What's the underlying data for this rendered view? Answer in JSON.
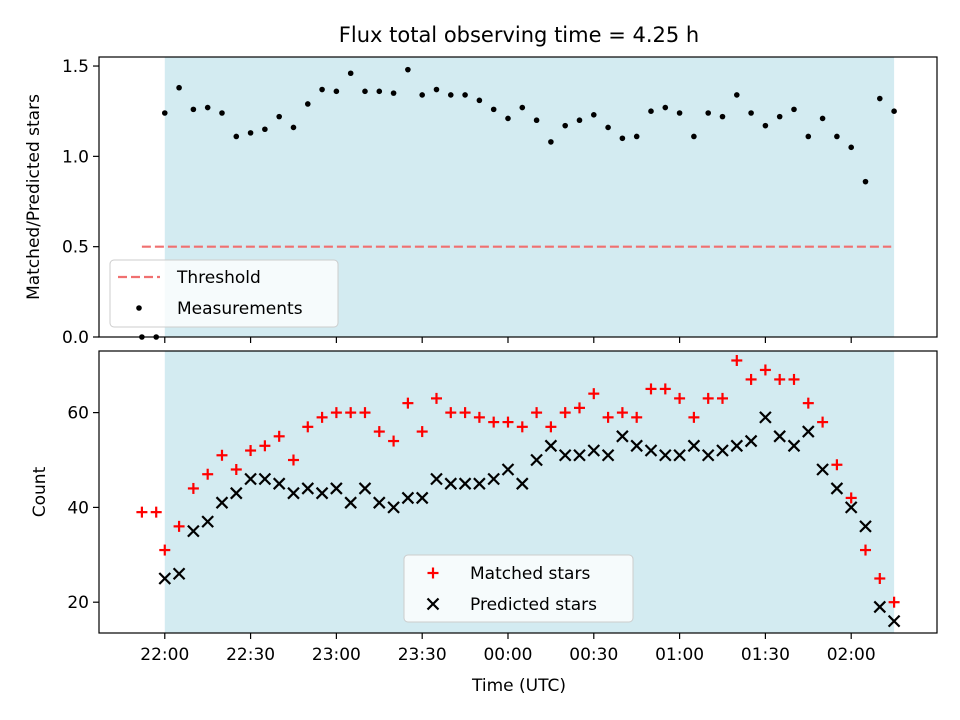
{
  "chart_data": [
    {
      "type": "scatter",
      "title": "Flux total observing time = 4.25 h",
      "ylabel": "Matched/Predicted stars",
      "xlim": [
        "21:37",
        "02:30"
      ],
      "ylim": [
        0,
        1.55
      ],
      "yticks": [
        "0.0",
        "0.5",
        "1.0",
        "1.5"
      ],
      "shaded_span": {
        "from": "22:00",
        "to": "02:15",
        "color": "#d3ebf1"
      },
      "threshold": {
        "name": "Threshold",
        "value": 0.5,
        "from": "21:52",
        "to": "02:14",
        "color": "#f07070"
      },
      "legend": {
        "location": "lower-left",
        "entries": [
          "Threshold",
          "Measurements"
        ]
      },
      "series": [
        {
          "name": "Measurements",
          "marker": "dot",
          "color": "#000000",
          "x": [
            "21:52",
            "21:57",
            "22:00",
            "22:05",
            "22:10",
            "22:15",
            "22:20",
            "22:25",
            "22:30",
            "22:35",
            "22:40",
            "22:45",
            "22:50",
            "22:55",
            "23:00",
            "23:05",
            "23:10",
            "23:15",
            "23:20",
            "23:25",
            "23:30",
            "23:35",
            "23:40",
            "23:45",
            "23:50",
            "23:55",
            "00:00",
            "00:05",
            "00:10",
            "00:15",
            "00:20",
            "00:25",
            "00:30",
            "00:35",
            "00:40",
            "00:45",
            "00:50",
            "00:55",
            "01:00",
            "01:05",
            "01:10",
            "01:15",
            "01:20",
            "01:25",
            "01:30",
            "01:35",
            "01:40",
            "01:45",
            "01:50",
            "01:55",
            "02:00",
            "02:05",
            "02:10",
            "02:15"
          ],
          "y": [
            0.0,
            0.0,
            1.24,
            1.38,
            1.26,
            1.27,
            1.24,
            1.11,
            1.13,
            1.15,
            1.22,
            1.16,
            1.29,
            1.37,
            1.36,
            1.46,
            1.36,
            1.36,
            1.35,
            1.48,
            1.34,
            1.37,
            1.34,
            1.34,
            1.31,
            1.26,
            1.21,
            1.27,
            1.2,
            1.08,
            1.17,
            1.2,
            1.23,
            1.16,
            1.1,
            1.11,
            1.25,
            1.27,
            1.24,
            1.11,
            1.24,
            1.22,
            1.34,
            1.24,
            1.17,
            1.22,
            1.26,
            1.11,
            1.21,
            1.11,
            1.05,
            0.86,
            1.32,
            1.25
          ]
        }
      ]
    },
    {
      "type": "scatter",
      "xlabel": "Time (UTC)",
      "ylabel": "Count",
      "xlim": [
        "21:37",
        "02:30"
      ],
      "ylim": [
        13.5,
        73
      ],
      "yticks": [
        "20",
        "40",
        "60"
      ],
      "xticks": [
        "22:00",
        "22:30",
        "23:00",
        "23:30",
        "00:00",
        "00:30",
        "01:00",
        "01:30",
        "02:00"
      ],
      "shaded_span": {
        "from": "22:00",
        "to": "02:15",
        "color": "#d3ebf1"
      },
      "legend": {
        "location": "lower-center",
        "entries": [
          "Matched stars",
          "Predicted stars"
        ]
      },
      "series": [
        {
          "name": "Matched stars",
          "marker": "plus",
          "color": "#ff0000",
          "x": [
            "21:52",
            "21:57",
            "22:00",
            "22:05",
            "22:10",
            "22:15",
            "22:20",
            "22:25",
            "22:30",
            "22:35",
            "22:40",
            "22:45",
            "22:50",
            "22:55",
            "23:00",
            "23:05",
            "23:10",
            "23:15",
            "23:20",
            "23:25",
            "23:30",
            "23:35",
            "23:40",
            "23:45",
            "23:50",
            "23:55",
            "00:00",
            "00:05",
            "00:10",
            "00:15",
            "00:20",
            "00:25",
            "00:30",
            "00:35",
            "00:40",
            "00:45",
            "00:50",
            "00:55",
            "01:00",
            "01:05",
            "01:10",
            "01:15",
            "01:20",
            "01:25",
            "01:30",
            "01:35",
            "01:40",
            "01:45",
            "01:50",
            "01:55",
            "02:00",
            "02:05",
            "02:10",
            "02:15"
          ],
          "y": [
            39,
            39,
            31,
            36,
            44,
            47,
            51,
            48,
            52,
            53,
            55,
            50,
            57,
            59,
            60,
            60,
            60,
            56,
            54,
            62,
            56,
            63,
            60,
            60,
            59,
            58,
            58,
            57,
            60,
            57,
            60,
            61,
            64,
            59,
            60,
            59,
            65,
            65,
            63,
            59,
            63,
            63,
            71,
            67,
            69,
            67,
            67,
            62,
            58,
            49,
            42,
            31,
            25,
            20
          ]
        },
        {
          "name": "Predicted stars",
          "marker": "x",
          "color": "#000000",
          "x": [
            "22:00",
            "22:05",
            "22:10",
            "22:15",
            "22:20",
            "22:25",
            "22:30",
            "22:35",
            "22:40",
            "22:45",
            "22:50",
            "22:55",
            "23:00",
            "23:05",
            "23:10",
            "23:15",
            "23:20",
            "23:25",
            "23:30",
            "23:35",
            "23:40",
            "23:45",
            "23:50",
            "23:55",
            "00:00",
            "00:05",
            "00:10",
            "00:15",
            "00:20",
            "00:25",
            "00:30",
            "00:35",
            "00:40",
            "00:45",
            "00:50",
            "00:55",
            "01:00",
            "01:05",
            "01:10",
            "01:15",
            "01:20",
            "01:25",
            "01:30",
            "01:35",
            "01:40",
            "01:45",
            "01:50",
            "01:55",
            "02:00",
            "02:05",
            "02:10",
            "02:15"
          ],
          "y": [
            25,
            26,
            35,
            37,
            41,
            43,
            46,
            46,
            45,
            43,
            44,
            43,
            44,
            41,
            44,
            41,
            40,
            42,
            42,
            46,
            45,
            45,
            45,
            46,
            48,
            45,
            50,
            53,
            51,
            51,
            52,
            51,
            55,
            53,
            52,
            51,
            51,
            53,
            51,
            52,
            53,
            54,
            59,
            55,
            53,
            56,
            48,
            44,
            40,
            36,
            19,
            16
          ]
        }
      ]
    }
  ]
}
